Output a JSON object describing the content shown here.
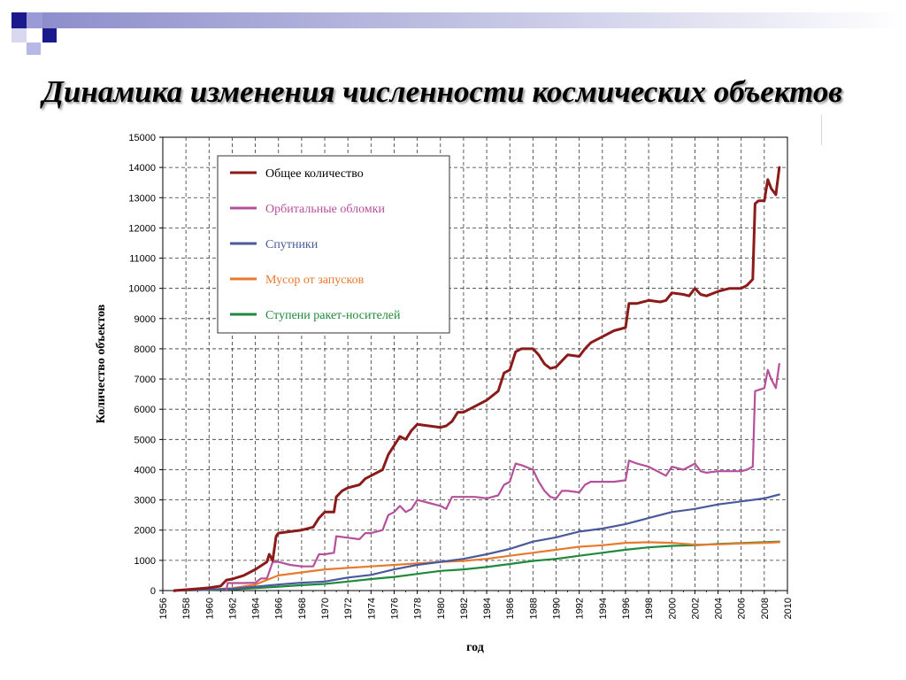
{
  "slide": {
    "title": "Динамика изменения численности космических объектов",
    "colors": {
      "corner_dark": "#1a1a8c",
      "corner_light": "#b8b8e6"
    }
  },
  "chart_data": {
    "type": "line",
    "title": "",
    "xlabel": "год",
    "ylabel": "Количество объектов",
    "xlim": [
      1956,
      2010
    ],
    "ylim": [
      0,
      15000
    ],
    "x_ticks": [
      "1956",
      "1958",
      "1960",
      "1962",
      "1964",
      "1966",
      "1968",
      "1970",
      "1972",
      "1974",
      "1976",
      "1978",
      "1980",
      "1982",
      "1984",
      "1986",
      "1988",
      "1990",
      "1992",
      "1994",
      "1996",
      "1998",
      "2000",
      "2002",
      "2004",
      "2006",
      "2008",
      "2010"
    ],
    "y_ticks": [
      "0",
      "1000",
      "2000",
      "3000",
      "4000",
      "5000",
      "6000",
      "7000",
      "8000",
      "9000",
      "10000",
      "11000",
      "12000",
      "13000",
      "14000",
      "15000"
    ],
    "grid": true,
    "legend": "top-left",
    "series": [
      {
        "name": "Общее количество",
        "color": "#8b1a1a",
        "points": [
          [
            1957,
            0
          ],
          [
            1958,
            30
          ],
          [
            1959,
            60
          ],
          [
            1960,
            90
          ],
          [
            1961,
            150
          ],
          [
            1961.5,
            350
          ],
          [
            1962,
            380
          ],
          [
            1963,
            500
          ],
          [
            1963.5,
            600
          ],
          [
            1964,
            700
          ],
          [
            1965,
            950
          ],
          [
            1965.2,
            1200
          ],
          [
            1965.5,
            1000
          ],
          [
            1965.8,
            1800
          ],
          [
            1966,
            1900
          ],
          [
            1967,
            1950
          ],
          [
            1968,
            2000
          ],
          [
            1969,
            2100
          ],
          [
            1969.5,
            2400
          ],
          [
            1970,
            2600
          ],
          [
            1970.8,
            2600
          ],
          [
            1971,
            3100
          ],
          [
            1971.5,
            3300
          ],
          [
            1972,
            3400
          ],
          [
            1973,
            3500
          ],
          [
            1973.5,
            3700
          ],
          [
            1974,
            3800
          ],
          [
            1975,
            4000
          ],
          [
            1975.5,
            4500
          ],
          [
            1976,
            4800
          ],
          [
            1976.5,
            5100
          ],
          [
            1977,
            5000
          ],
          [
            1977.5,
            5300
          ],
          [
            1978,
            5500
          ],
          [
            1979,
            5450
          ],
          [
            1980,
            5400
          ],
          [
            1980.5,
            5450
          ],
          [
            1981,
            5600
          ],
          [
            1981.5,
            5900
          ],
          [
            1982,
            5900
          ],
          [
            1983,
            6100
          ],
          [
            1984,
            6300
          ],
          [
            1985,
            6600
          ],
          [
            1985.5,
            7200
          ],
          [
            1986,
            7300
          ],
          [
            1986.5,
            7900
          ],
          [
            1987,
            8000
          ],
          [
            1988,
            8000
          ],
          [
            1988.5,
            7800
          ],
          [
            1989,
            7500
          ],
          [
            1989.5,
            7350
          ],
          [
            1990,
            7400
          ],
          [
            1990.5,
            7600
          ],
          [
            1991,
            7800
          ],
          [
            1992,
            7750
          ],
          [
            1992.5,
            8000
          ],
          [
            1993,
            8200
          ],
          [
            1994,
            8400
          ],
          [
            1995,
            8600
          ],
          [
            1996,
            8700
          ],
          [
            1996.3,
            9500
          ],
          [
            1997,
            9500
          ],
          [
            1998,
            9600
          ],
          [
            1999,
            9550
          ],
          [
            1999.5,
            9600
          ],
          [
            2000,
            9850
          ],
          [
            2001,
            9800
          ],
          [
            2001.5,
            9750
          ],
          [
            2002,
            10000
          ],
          [
            2002.5,
            9800
          ],
          [
            2003,
            9750
          ],
          [
            2004,
            9900
          ],
          [
            2005,
            10000
          ],
          [
            2006,
            10000
          ],
          [
            2006.5,
            10100
          ],
          [
            2007,
            10300
          ],
          [
            2007.2,
            12800
          ],
          [
            2007.5,
            12900
          ],
          [
            2008,
            12900
          ],
          [
            2008.3,
            13600
          ],
          [
            2008.6,
            13300
          ],
          [
            2009,
            13100
          ],
          [
            2009.3,
            14000
          ]
        ]
      },
      {
        "name": "Орбитальные обломки",
        "color": "#b5509a",
        "points": [
          [
            1961.5,
            0
          ],
          [
            1961.6,
            250
          ],
          [
            1963,
            250
          ],
          [
            1964,
            260
          ],
          [
            1964.5,
            400
          ],
          [
            1965,
            400
          ],
          [
            1965.5,
            950
          ],
          [
            1966,
            950
          ],
          [
            1967,
            850
          ],
          [
            1968,
            800
          ],
          [
            1969,
            800
          ],
          [
            1969.5,
            1200
          ],
          [
            1970,
            1200
          ],
          [
            1970.8,
            1250
          ],
          [
            1971,
            1800
          ],
          [
            1972,
            1750
          ],
          [
            1973,
            1700
          ],
          [
            1973.5,
            1900
          ],
          [
            1974,
            1900
          ],
          [
            1975,
            2000
          ],
          [
            1975.5,
            2500
          ],
          [
            1976,
            2600
          ],
          [
            1976.5,
            2800
          ],
          [
            1977,
            2600
          ],
          [
            1977.5,
            2700
          ],
          [
            1978,
            3000
          ],
          [
            1979,
            2900
          ],
          [
            1980,
            2800
          ],
          [
            1980.5,
            2700
          ],
          [
            1981,
            3100
          ],
          [
            1982,
            3100
          ],
          [
            1983,
            3100
          ],
          [
            1984,
            3050
          ],
          [
            1985,
            3150
          ],
          [
            1985.5,
            3500
          ],
          [
            1986,
            3600
          ],
          [
            1986.5,
            4200
          ],
          [
            1987,
            4150
          ],
          [
            1988,
            4000
          ],
          [
            1988.5,
            3600
          ],
          [
            1989,
            3300
          ],
          [
            1989.5,
            3100
          ],
          [
            1990,
            3050
          ],
          [
            1990.5,
            3300
          ],
          [
            1991,
            3300
          ],
          [
            1992,
            3250
          ],
          [
            1992.5,
            3500
          ],
          [
            1993,
            3600
          ],
          [
            1994,
            3600
          ],
          [
            1995,
            3600
          ],
          [
            1996,
            3650
          ],
          [
            1996.3,
            4300
          ],
          [
            1997,
            4200
          ],
          [
            1998,
            4100
          ],
          [
            1999,
            3900
          ],
          [
            1999.5,
            3800
          ],
          [
            2000,
            4100
          ],
          [
            2001,
            4000
          ],
          [
            2002,
            4200
          ],
          [
            2002.5,
            3950
          ],
          [
            2003,
            3900
          ],
          [
            2004,
            3950
          ],
          [
            2005,
            3950
          ],
          [
            2006,
            3950
          ],
          [
            2006.5,
            4000
          ],
          [
            2007,
            4100
          ],
          [
            2007.2,
            6600
          ],
          [
            2008,
            6700
          ],
          [
            2008.3,
            7300
          ],
          [
            2008.6,
            7000
          ],
          [
            2009,
            6700
          ],
          [
            2009.3,
            7500
          ]
        ]
      },
      {
        "name": "Спутники",
        "color": "#4a5a9a",
        "points": [
          [
            1957,
            0
          ],
          [
            1960,
            30
          ],
          [
            1962,
            60
          ],
          [
            1964,
            130
          ],
          [
            1966,
            200
          ],
          [
            1968,
            260
          ],
          [
            1970,
            300
          ],
          [
            1972,
            430
          ],
          [
            1974,
            520
          ],
          [
            1976,
            700
          ],
          [
            1978,
            850
          ],
          [
            1980,
            950
          ],
          [
            1982,
            1050
          ],
          [
            1984,
            1200
          ],
          [
            1986,
            1380
          ],
          [
            1988,
            1620
          ],
          [
            1990,
            1760
          ],
          [
            1992,
            1950
          ],
          [
            1994,
            2050
          ],
          [
            1996,
            2200
          ],
          [
            1998,
            2400
          ],
          [
            2000,
            2600
          ],
          [
            2002,
            2700
          ],
          [
            2004,
            2850
          ],
          [
            2006,
            2950
          ],
          [
            2008,
            3050
          ],
          [
            2009.3,
            3180
          ]
        ]
      },
      {
        "name": "Мусор от запусков",
        "color": "#e87a2e",
        "points": [
          [
            1957,
            0
          ],
          [
            1960,
            30
          ],
          [
            1962,
            80
          ],
          [
            1964,
            200
          ],
          [
            1966,
            500
          ],
          [
            1968,
            600
          ],
          [
            1970,
            700
          ],
          [
            1972,
            750
          ],
          [
            1974,
            800
          ],
          [
            1976,
            850
          ],
          [
            1978,
            900
          ],
          [
            1980,
            950
          ],
          [
            1982,
            980
          ],
          [
            1984,
            1050
          ],
          [
            1986,
            1150
          ],
          [
            1988,
            1250
          ],
          [
            1990,
            1350
          ],
          [
            1992,
            1450
          ],
          [
            1994,
            1500
          ],
          [
            1996,
            1580
          ],
          [
            1998,
            1600
          ],
          [
            2000,
            1580
          ],
          [
            2002,
            1520
          ],
          [
            2004,
            1530
          ],
          [
            2006,
            1560
          ],
          [
            2008,
            1580
          ],
          [
            2009.3,
            1600
          ]
        ]
      },
      {
        "name": "Ступени ракет-носителей",
        "color": "#1f8a3c",
        "points": [
          [
            1957,
            0
          ],
          [
            1960,
            20
          ],
          [
            1962,
            40
          ],
          [
            1964,
            80
          ],
          [
            1966,
            130
          ],
          [
            1968,
            180
          ],
          [
            1970,
            220
          ],
          [
            1972,
            300
          ],
          [
            1974,
            380
          ],
          [
            1976,
            450
          ],
          [
            1978,
            550
          ],
          [
            1980,
            650
          ],
          [
            1982,
            700
          ],
          [
            1984,
            780
          ],
          [
            1986,
            880
          ],
          [
            1988,
            980
          ],
          [
            1990,
            1050
          ],
          [
            1992,
            1150
          ],
          [
            1994,
            1250
          ],
          [
            1996,
            1350
          ],
          [
            1998,
            1430
          ],
          [
            2000,
            1480
          ],
          [
            2002,
            1500
          ],
          [
            2004,
            1540
          ],
          [
            2006,
            1570
          ],
          [
            2008,
            1600
          ],
          [
            2009.3,
            1620
          ]
        ]
      }
    ]
  }
}
